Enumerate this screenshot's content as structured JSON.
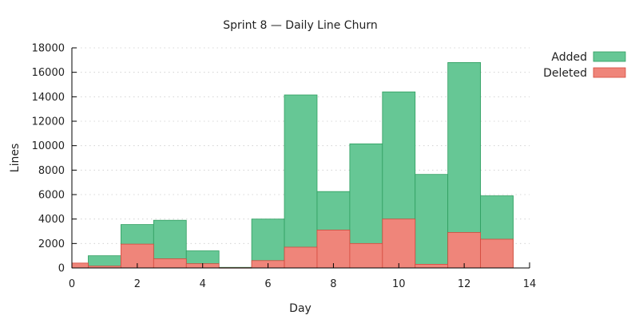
{
  "chart_data": {
    "type": "bar",
    "stacked": "overlay",
    "title": "Sprint 8 — Daily Line Churn",
    "xlabel": "Day",
    "ylabel": "Lines",
    "xlim": [
      0,
      14
    ],
    "ylim": [
      0,
      18000
    ],
    "xticks": [
      0,
      2,
      4,
      6,
      8,
      10,
      12,
      14
    ],
    "yticks": [
      0,
      2000,
      4000,
      6000,
      8000,
      10000,
      12000,
      14000,
      16000,
      18000
    ],
    "grid": "horizontal dotted",
    "legend_position": "top-right",
    "x": [
      0,
      1,
      2,
      3,
      4,
      5,
      6,
      7,
      8,
      9,
      10,
      11,
      12,
      13
    ],
    "series": [
      {
        "name": "Added",
        "color": "#66c795",
        "stroke": "#2e9e5f",
        "values": [
          200,
          1000,
          3550,
          3900,
          1400,
          50,
          4000,
          14150,
          6250,
          10150,
          14400,
          7650,
          16800,
          5900
        ]
      },
      {
        "name": "Deleted",
        "color": "#ef857a",
        "stroke": "#d4493d",
        "values": [
          400,
          150,
          1950,
          750,
          350,
          20,
          600,
          1700,
          3100,
          2000,
          4000,
          300,
          2900,
          2350
        ]
      }
    ]
  }
}
